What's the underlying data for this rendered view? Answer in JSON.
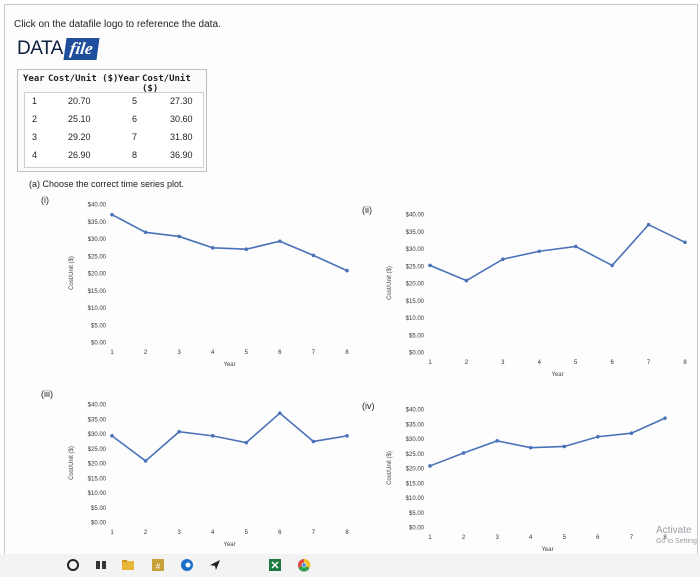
{
  "instruction": "Click on the datafile logo to reference the data.",
  "logo": {
    "word": "DATA",
    "tag": "file"
  },
  "table": {
    "headers": [
      "Year",
      "Cost/Unit ($)",
      "Year",
      "Cost/Unit ($)"
    ],
    "rows": [
      [
        "1",
        "20.70",
        "5",
        "27.30"
      ],
      [
        "2",
        "25.10",
        "6",
        "30.60"
      ],
      [
        "3",
        "29.20",
        "7",
        "31.80"
      ],
      [
        "4",
        "26.90",
        "8",
        "36.90"
      ]
    ]
  },
  "part_a": "(a) Choose the correct time series plot.",
  "options": [
    "(i)",
    "(ii)",
    "(iii)",
    "(iv)"
  ],
  "chart_data": [
    {
      "type": "line",
      "label": "(i)",
      "x": [
        1,
        2,
        3,
        4,
        5,
        6,
        7,
        8
      ],
      "values": [
        36.9,
        31.8,
        30.6,
        27.3,
        26.9,
        29.2,
        25.1,
        20.7
      ],
      "xlabel": "Year",
      "ylabel": "Cost/Unit ($)",
      "ylim": [
        0,
        40
      ],
      "y_ticks": [
        "$40.00",
        "$35.00",
        "$30.00",
        "$25.00",
        "$20.00",
        "$15.00",
        "$10.00",
        "$5.00",
        "$0.00"
      ],
      "x_ticks": [
        "1",
        "2",
        "3",
        "4",
        "5",
        "6",
        "7",
        "8"
      ],
      "color": "#4a72b8"
    },
    {
      "type": "line",
      "label": "(ii)",
      "x": [
        1,
        2,
        3,
        4,
        5,
        6,
        7,
        8
      ],
      "values": [
        25.1,
        20.7,
        26.9,
        29.2,
        30.6,
        25.1,
        36.9,
        31.8
      ],
      "xlabel": "Year",
      "ylabel": "Cost/Unit ($)",
      "ylim": [
        0,
        40
      ],
      "y_ticks": [
        "$40.00",
        "$35.00",
        "$30.00",
        "$25.00",
        "$20.00",
        "$15.00",
        "$10.00",
        "$5.00",
        "$0.00"
      ],
      "x_ticks": [
        "1",
        "2",
        "3",
        "4",
        "5",
        "6",
        "7",
        "8"
      ],
      "color": "#4a72b8"
    },
    {
      "type": "line",
      "label": "(iii)",
      "x": [
        1,
        2,
        3,
        4,
        5,
        6,
        7,
        8
      ],
      "values": [
        29.2,
        20.7,
        30.6,
        29.2,
        26.9,
        36.9,
        27.3,
        29.2
      ],
      "xlabel": "Year",
      "ylabel": "Cost/Unit ($)",
      "ylim": [
        0,
        40
      ],
      "y_ticks": [
        "$40.00",
        "$35.00",
        "$30.00",
        "$25.00",
        "$20.00",
        "$15.00",
        "$10.00",
        "$5.00",
        "$0.00"
      ],
      "x_ticks": [
        "1",
        "2",
        "3",
        "4",
        "5",
        "6",
        "7",
        "8"
      ],
      "color": "#4a72b8"
    },
    {
      "type": "line",
      "label": "(iv)",
      "x": [
        1,
        2,
        3,
        4,
        5,
        6,
        7,
        8
      ],
      "values": [
        20.7,
        25.1,
        29.2,
        26.9,
        27.3,
        30.6,
        31.8,
        36.9
      ],
      "xlabel": "Year",
      "ylabel": "Cost/Unit ($)",
      "ylim": [
        0,
        40
      ],
      "y_ticks": [
        "$40.00",
        "$35.00",
        "$30.00",
        "$25.00",
        "$20.00",
        "$15.00",
        "$10.00",
        "$5.00",
        "$0.00"
      ],
      "x_ticks": [
        "1",
        "2",
        "3",
        "4",
        "5",
        "6",
        "7",
        "8"
      ],
      "color": "#4a72b8"
    }
  ],
  "watermark": {
    "title": "Activate",
    "sub": "Go to Setting"
  },
  "taskbar_icons": [
    "start-circle-icon",
    "task-view-icon",
    "file-explorer-icon",
    "calendar-app-icon",
    "edge-browser-icon",
    "send-arrow-icon",
    "spreadsheet-app-icon",
    "chrome-browser-icon"
  ]
}
